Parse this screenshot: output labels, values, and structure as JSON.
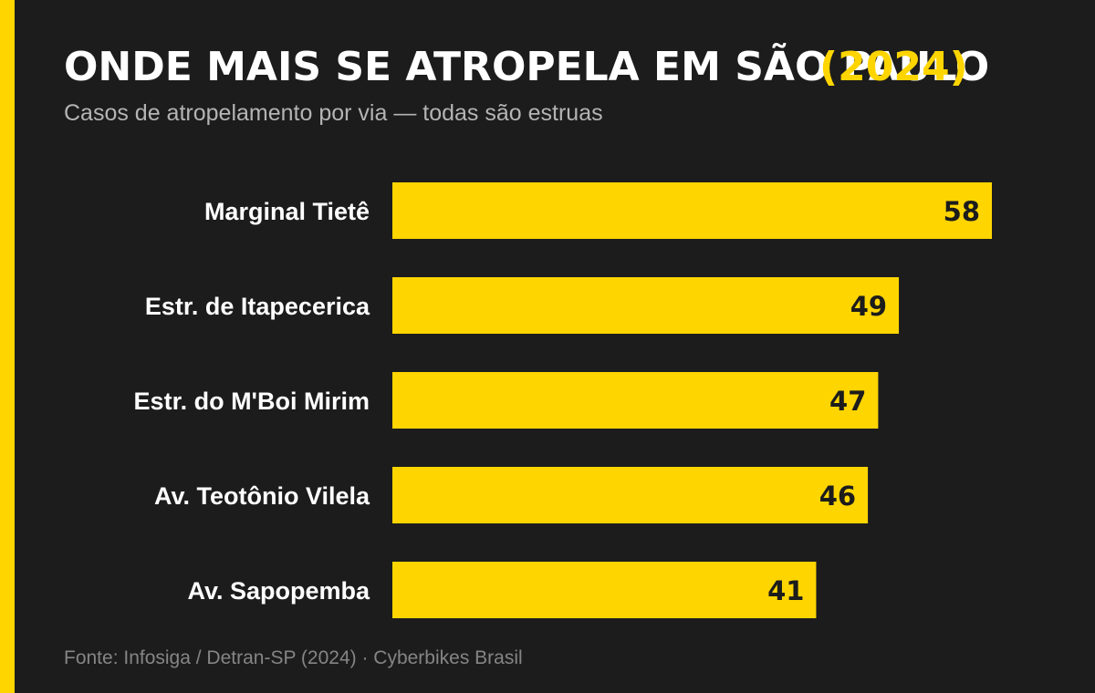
{
  "header": {
    "title": "ONDE MAIS SE ATROPELA EM SÃO PAULO",
    "title_year": "(2024)",
    "subtitle": "Casos de atropelamento por via — todas são estruas"
  },
  "footer": {
    "source": "Fonte: Infosiga / Detran-SP (2024) · Cyberbikes Brasil"
  },
  "colors": {
    "background": "#1c1c1c",
    "accent": "#ffd500",
    "category_label": "#ffffff",
    "value_label": "#1c1c1c"
  },
  "chart_data": {
    "type": "bar",
    "orientation": "horizontal",
    "categories": [
      "Marginal Tietê",
      "Estr. de Itapecerica",
      "Estr. do M'Boi Mirim",
      "Av. Teotônio Vilela",
      "Av. Sapopemba"
    ],
    "values": [
      58,
      49,
      47,
      46,
      41
    ],
    "title": "ONDE MAIS SE ATROPELA EM SÃO PAULO (2024)",
    "subtitle": "Casos de atropelamento por via — todas são estruas",
    "xlabel": "",
    "ylabel": "",
    "xlim": [
      0,
      58
    ],
    "grid": false,
    "legend": "none",
    "data_labels": true
  }
}
